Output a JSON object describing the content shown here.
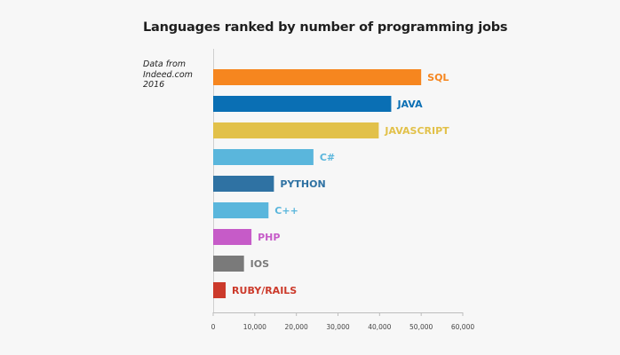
{
  "title": "Languages ranked by number of programming jobs",
  "source_note": [
    "Data from",
    "Indeed.com",
    "2016"
  ],
  "chart_data": {
    "type": "bar",
    "orientation": "horizontal",
    "title": "Languages ranked by number of programming jobs",
    "xlabel": "",
    "ylabel": "",
    "xlim": [
      0,
      60000
    ],
    "x_ticks": [
      0,
      10000,
      20000,
      30000,
      40000,
      50000,
      60000
    ],
    "x_tick_labels": [
      "0",
      "10,000",
      "20,000",
      "30,000",
      "40,000",
      "50,000",
      "60,000"
    ],
    "grid": false,
    "categories": [
      "SQL",
      "JAVA",
      "JAVASCRIPT",
      "C#",
      "PYTHON",
      "C++",
      "PHP",
      "IOS",
      "RUBY/RAILS"
    ],
    "values": [
      50000,
      42800,
      39800,
      24100,
      14600,
      13300,
      9200,
      7400,
      3000
    ],
    "colors": [
      "#f6861f",
      "#0a6fb4",
      "#e2c14a",
      "#5ab6dc",
      "#2f72a3",
      "#5ab6dc",
      "#c65bc8",
      "#7a7a7a",
      "#cc3a2b"
    ]
  }
}
